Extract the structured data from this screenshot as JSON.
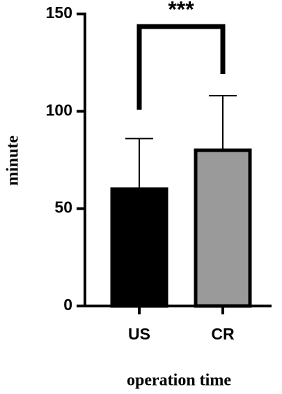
{
  "chart_data": {
    "type": "bar",
    "x_label": "operation time",
    "y_label": "minute",
    "categories": [
      "US",
      "CR"
    ],
    "values": [
      60,
      80
    ],
    "errors": [
      26,
      28
    ],
    "colors": [
      "#000000",
      "#9a9a9a"
    ],
    "ylim": [
      0,
      150
    ],
    "yticks": [
      0,
      50,
      100,
      150
    ],
    "annotation": "***"
  }
}
